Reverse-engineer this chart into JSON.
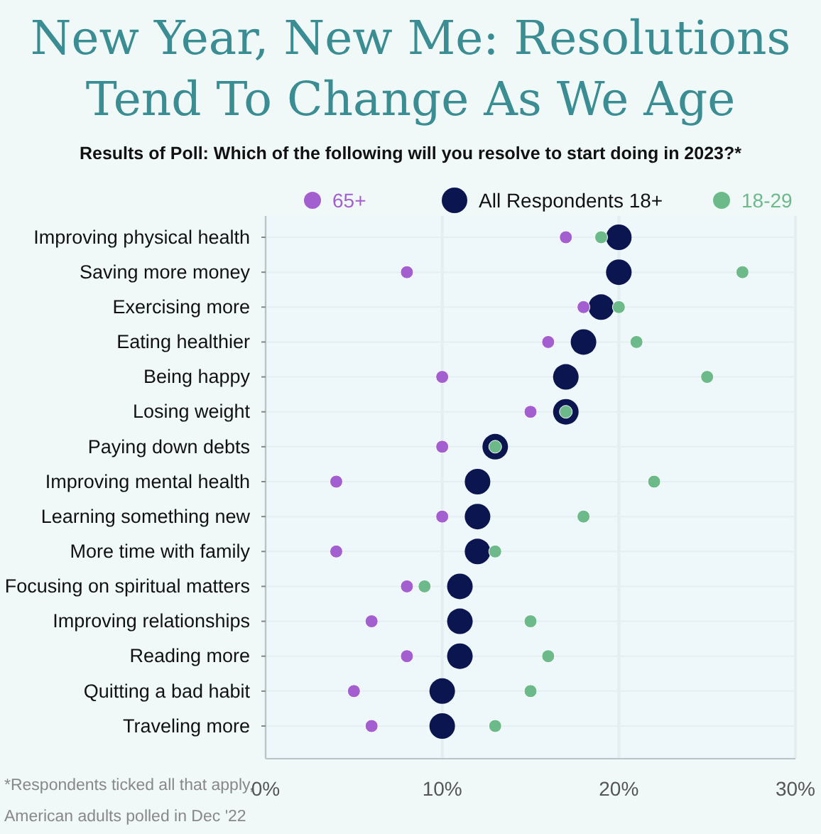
{
  "chart_data": {
    "type": "scatter",
    "title": "New Year, New Me: Resolutions\nTend To Change As We Age",
    "subtitle": "Results of Poll: Which of the following will you resolve to start doing in 2023?*",
    "categories": [
      "Improving physical health",
      "Saving more money",
      "Exercising more",
      "Eating healthier",
      "Being happy",
      "Losing weight",
      "Paying down debts",
      "Improving mental health",
      "Learning something new",
      "More time with family",
      "Focusing on spiritual matters",
      "Improving relationships",
      "Reading more",
      "Quitting a bad habit",
      "Traveling more"
    ],
    "series": [
      {
        "name": "All Respondents 18+",
        "color": "#0b1650",
        "values": [
          20,
          20,
          19,
          18,
          17,
          17,
          13,
          12,
          12,
          12,
          11,
          11,
          11,
          10,
          10
        ]
      },
      {
        "name": "65+",
        "color": "#a35fcf",
        "values": [
          17,
          8,
          18,
          16,
          10,
          15,
          10,
          4,
          10,
          4,
          8,
          6,
          8,
          5,
          6
        ]
      },
      {
        "name": "18-29",
        "color": "#6cba8a",
        "values": [
          19,
          27,
          20,
          21,
          25,
          17,
          13,
          22,
          18,
          13,
          9,
          15,
          16,
          15,
          13
        ]
      }
    ],
    "xlim": [
      0,
      30
    ],
    "xticks": [
      {
        "value": 0,
        "label": "0%"
      },
      {
        "value": 10,
        "label": "10%"
      },
      {
        "value": 20,
        "label": "20%"
      },
      {
        "value": 30,
        "label": "30%"
      }
    ],
    "grid": true,
    "legend": "top",
    "marker": "circle",
    "orientation": "horizontal",
    "annotations": [
      "*Respondents ticked all that apply,",
      "American adults polled in Dec '22"
    ]
  }
}
